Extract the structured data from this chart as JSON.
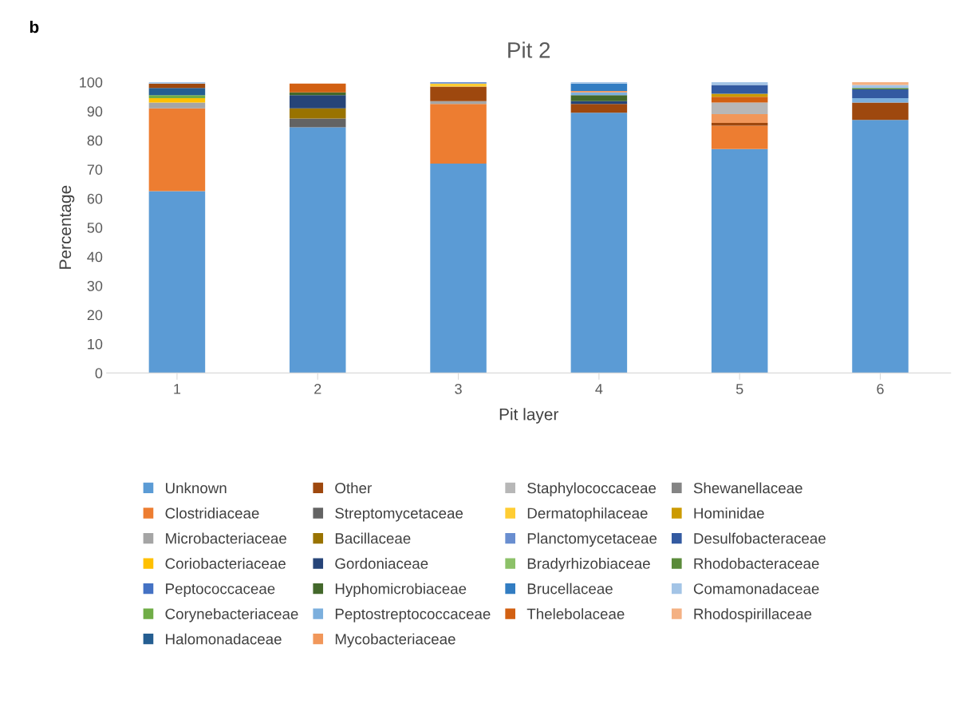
{
  "chart_data": {
    "type": "bar",
    "title": "Pit 2",
    "xlabel": "Pit layer",
    "ylabel": "Percentage",
    "annotations": [
      "b"
    ],
    "categories": [
      "1",
      "2",
      "3",
      "4",
      "5",
      "6"
    ],
    "stacked": true,
    "ylim": [
      0,
      100
    ],
    "yticks": [
      0,
      10,
      20,
      30,
      40,
      50,
      60,
      70,
      80,
      90,
      100
    ],
    "grid": false,
    "legend": "bottom",
    "series": [
      {
        "name": "Unknown",
        "color": "#5b9bd5",
        "values": [
          62.5,
          84.5,
          72,
          89.5,
          77,
          87
        ]
      },
      {
        "name": "Clostridiaceae",
        "color": "#ed7d31",
        "values": [
          28.5,
          0,
          20.5,
          0,
          8,
          0
        ]
      },
      {
        "name": "Microbacteriaceae",
        "color": "#a5a5a5",
        "values": [
          2,
          0,
          1,
          0,
          0,
          0
        ]
      },
      {
        "name": "Coriobacteriaceae",
        "color": "#ffc000",
        "values": [
          1.5,
          0,
          0,
          0,
          0,
          0
        ]
      },
      {
        "name": "Peptococcaceae",
        "color": "#4472c4",
        "values": [
          0,
          0,
          0,
          0,
          0,
          0
        ]
      },
      {
        "name": "Corynebacteriaceae",
        "color": "#70ad47",
        "values": [
          1,
          0,
          0,
          0,
          0,
          0
        ]
      },
      {
        "name": "Halomonadaceae",
        "color": "#255e91",
        "values": [
          2.5,
          0,
          0,
          0,
          0,
          0
        ]
      },
      {
        "name": "Other",
        "color": "#9e480e",
        "values": [
          1.5,
          0,
          5,
          3,
          1,
          6
        ]
      },
      {
        "name": "Streptomycetaceae",
        "color": "#636363",
        "values": [
          0,
          3,
          0,
          0,
          0,
          0
        ]
      },
      {
        "name": "Bacillaceae",
        "color": "#997300",
        "values": [
          0,
          3.5,
          0,
          0,
          0,
          0
        ]
      },
      {
        "name": "Gordoniaceae",
        "color": "#264478",
        "values": [
          0,
          4.5,
          0,
          1,
          0,
          0
        ]
      },
      {
        "name": "Hyphomicrobiaceae",
        "color": "#43682b",
        "values": [
          0,
          1,
          0,
          2,
          0,
          0
        ]
      },
      {
        "name": "Peptostreptococcaceae",
        "color": "#7cafdd",
        "values": [
          0,
          0,
          0,
          1,
          0,
          1.5
        ]
      },
      {
        "name": "Mycobacteriaceae",
        "color": "#f1975a",
        "values": [
          0,
          0,
          0,
          0.5,
          3,
          0
        ]
      },
      {
        "name": "Staphylococcaceae",
        "color": "#b7b7b7",
        "values": [
          0,
          0,
          0,
          0,
          4,
          0
        ]
      },
      {
        "name": "Dermatophilaceae",
        "color": "#ffcd33",
        "values": [
          0,
          0,
          1,
          0,
          0,
          0
        ]
      },
      {
        "name": "Planctomycetaceae",
        "color": "#698ed0",
        "values": [
          0,
          0,
          0.5,
          0,
          0,
          0
        ]
      },
      {
        "name": "Bradyrhizobiaceae",
        "color": "#8cc168",
        "values": [
          0,
          0,
          0,
          0,
          0,
          0
        ]
      },
      {
        "name": "Brucellaceae",
        "color": "#327dc2",
        "values": [
          0,
          0,
          0,
          2.5,
          0,
          0
        ]
      },
      {
        "name": "Thelebolaceae",
        "color": "#d26012",
        "values": [
          0,
          3,
          0,
          0,
          2,
          0
        ]
      },
      {
        "name": "Shewanellaceae",
        "color": "#848484",
        "values": [
          0,
          0,
          0,
          0,
          0,
          0
        ]
      },
      {
        "name": "Hominidae",
        "color": "#cc9a00",
        "values": [
          0,
          0,
          0,
          0,
          1,
          0
        ]
      },
      {
        "name": "Desulfobacteraceae",
        "color": "#335aa1",
        "values": [
          0,
          0,
          0,
          0,
          3,
          3
        ]
      },
      {
        "name": "Rhodobacteraceae",
        "color": "#5a8a39",
        "values": [
          0,
          0,
          0,
          0,
          0,
          0.5
        ]
      },
      {
        "name": "Comamonadaceae",
        "color": "#a3c4e6",
        "values": [
          0.5,
          0,
          0,
          0.5,
          1,
          1
        ]
      },
      {
        "name": "Rhodospirillaceae",
        "color": "#f4b183",
        "values": [
          0,
          0,
          0,
          0,
          0,
          1
        ]
      }
    ]
  }
}
